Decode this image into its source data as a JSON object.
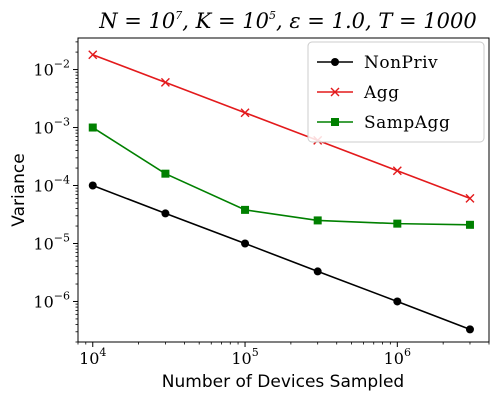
{
  "chart_data": {
    "type": "line",
    "title": "N = 10^7, K = 10^5, ε = 1.0, T = 1000",
    "title_parts": {
      "p1": "N = 10",
      "p1_sup": "7",
      "p2": ", K = 10",
      "p2_sup": "5",
      "p3": ", ε = 1.0, T = 1000"
    },
    "xlabel": "Number of Devices Sampled",
    "ylabel": "Variance",
    "xscale": "log",
    "yscale": "log",
    "xlim": [
      8000,
      4000000
    ],
    "ylim": [
      2e-07,
      0.035
    ],
    "x_ticks": [
      {
        "value": 10000,
        "base": "10",
        "exp": "4"
      },
      {
        "value": 100000,
        "base": "10",
        "exp": "5"
      },
      {
        "value": 1000000,
        "base": "10",
        "exp": "6"
      }
    ],
    "y_ticks": [
      {
        "value": 1e-06,
        "base": "10",
        "exp": "−6"
      },
      {
        "value": 1e-05,
        "base": "10",
        "exp": "−5"
      },
      {
        "value": 0.0001,
        "base": "10",
        "exp": "−4"
      },
      {
        "value": 0.001,
        "base": "10",
        "exp": "−3"
      },
      {
        "value": 0.01,
        "base": "10",
        "exp": "−2"
      }
    ],
    "grid": false,
    "legend_position": "top-right",
    "x": [
      10000,
      30000,
      100000,
      300000,
      1000000,
      3000000
    ],
    "series": [
      {
        "name": "NonPriv",
        "color": "#000000",
        "marker": "circle",
        "values": [
          0.0001,
          3.3e-05,
          1e-05,
          3.3e-06,
          1e-06,
          3.3e-07
        ]
      },
      {
        "name": "Agg",
        "color": "#e31a1c",
        "marker": "x",
        "values": [
          0.018,
          0.006,
          0.0018,
          0.0006,
          0.00018,
          6e-05
        ]
      },
      {
        "name": "SampAgg",
        "color": "#008000",
        "marker": "square",
        "values": [
          0.001,
          0.00016,
          3.8e-05,
          2.5e-05,
          2.2e-05,
          2.1e-05
        ]
      }
    ]
  }
}
